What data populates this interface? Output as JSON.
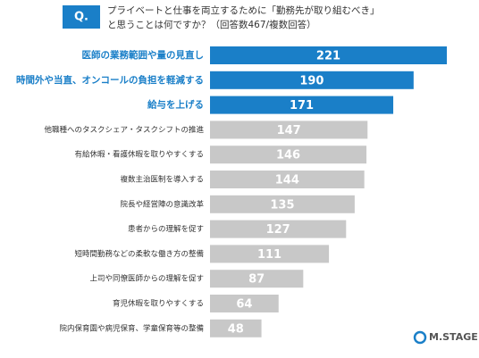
{
  "chart_data": {
    "type": "bar",
    "orientation": "horizontal",
    "question_label": "Q.",
    "title": "プライベートと仕事を両立するために「勤務先が取り組むべき」",
    "subtitle": "と思うことは何ですか？（回答数467/複数回答）",
    "categories": [
      "医師の業務範囲や量の見直し",
      "時間外や当直、オンコールの負担を軽減する",
      "給与を上げる",
      "他職種へのタスクシェア・タスクシフトの推進",
      "有給休暇・看護休暇を取りやすくする",
      "複数主治医制を導入する",
      "院長や経営陣の意識改革",
      "患者からの理解を促す",
      "短時間勤務などの柔軟な働き方の整備",
      "上司や同僚医師からの理解を促す",
      "育児休暇を取りやすくする",
      "院内保育園や病児保育、学童保育等の整備"
    ],
    "values": [
      221,
      190,
      171,
      147,
      146,
      144,
      135,
      127,
      111,
      87,
      64,
      48
    ],
    "colors": [
      "#1a7fc8",
      "#1a7fc8",
      "#1a7fc8",
      "#c8c8c8",
      "#c8c8c8",
      "#c8c8c8",
      "#c8c8c8",
      "#c8c8c8",
      "#c8c8c8",
      "#c8c8c8",
      "#c8c8c8",
      "#c8c8c8"
    ],
    "highlight_count": 3
  },
  "logo": "M.STAGE"
}
